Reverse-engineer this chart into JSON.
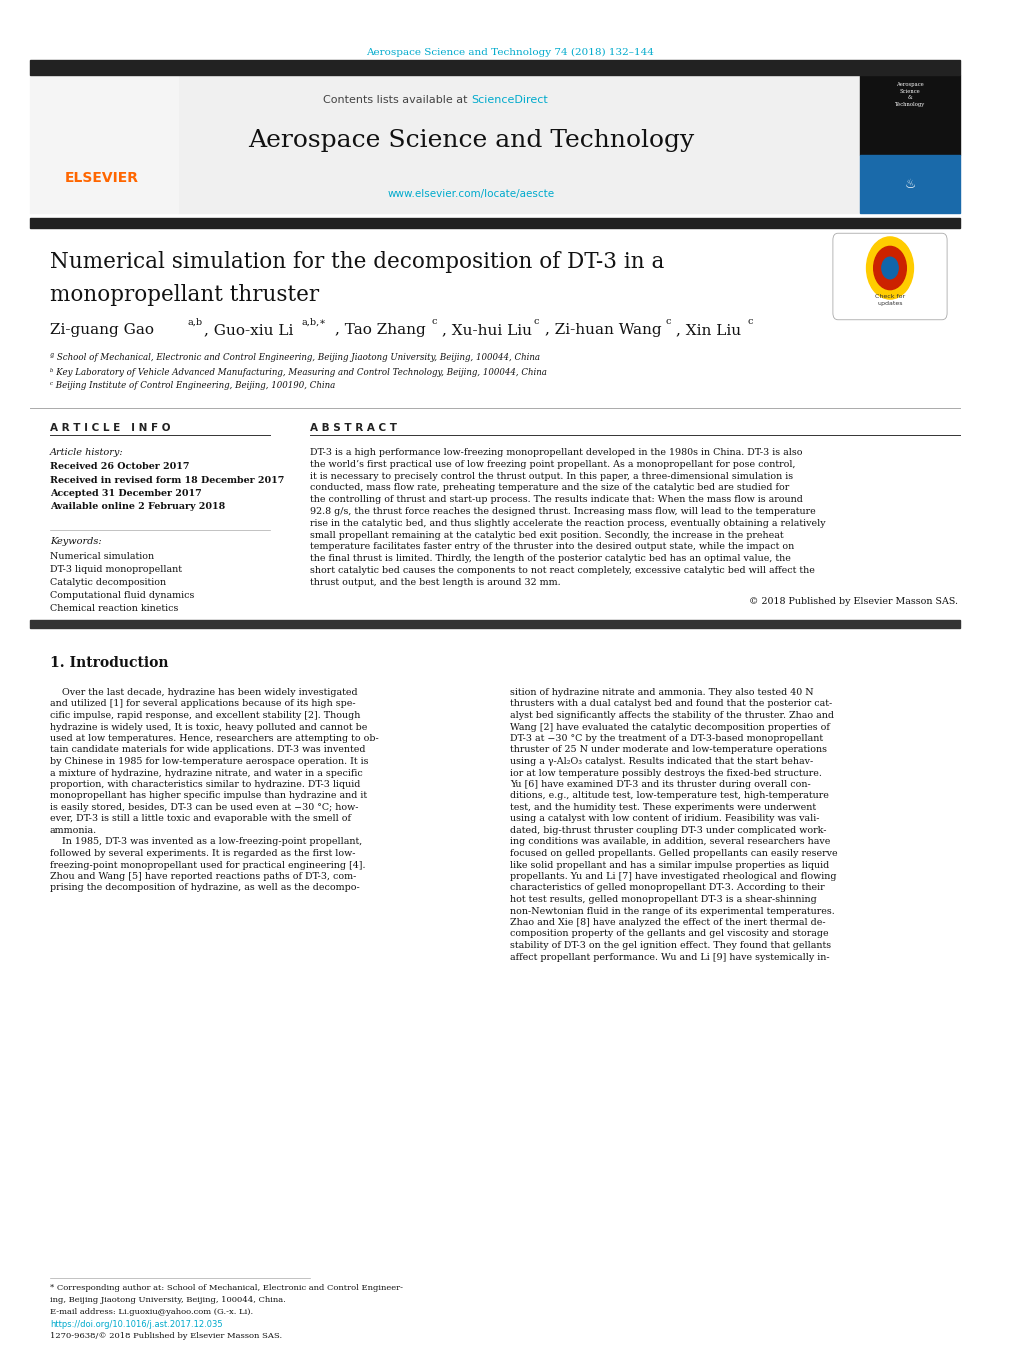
{
  "page_width": 10.2,
  "page_height": 13.51,
  "bg_color": "#ffffff",
  "journal_ref": "Aerospace Science and Technology 74 (2018) 132–144",
  "journal_ref_color": "#00aacc",
  "contents_text": "Contents lists available at ",
  "sciencedirect_text": "ScienceDirect",
  "sciencedirect_color": "#00aacc",
  "journal_title": "Aerospace Science and Technology",
  "journal_url": "www.elsevier.com/locate/aescte",
  "journal_url_color": "#00aacc",
  "top_bar_color": "#222222",
  "elsevier_color": "#ff6600",
  "sidebar_blue": "#1a6aaa",
  "section_article_info": "A R T I C L E   I N F O",
  "section_abstract": "A B S T R A C T",
  "article_history_label": "Article history:",
  "received1": "Received 26 October 2017",
  "received2": "Received in revised form 18 December 2017",
  "accepted": "Accepted 31 December 2017",
  "available": "Available online 2 February 2018",
  "keywords_label": "Keywords:",
  "keywords": [
    "Numerical simulation",
    "DT-3 liquid monopropellant",
    "Catalytic decomposition",
    "Computational fluid dynamics",
    "Chemical reaction kinetics"
  ],
  "affil_a": "ª School of Mechanical, Electronic and Control Engineering, Beijing Jiaotong University, Beijing, 100044, China",
  "affil_b": "ᵇ Key Laboratory of Vehicle Advanced Manufacturing, Measuring and Control Technology, Beijing, 100044, China",
  "affil_c": "ᶜ Beijing Institute of Control Engineering, Beijing, 100190, China",
  "copyright": "© 2018 Published by Elsevier Masson SAS.",
  "section1_title": "1. Introduction",
  "footer_link": "https://doi.org/10.1016/j.ast.2017.12.035",
  "footer_issn": "1270-9638/© 2018 Published by Elsevier Masson SAS."
}
